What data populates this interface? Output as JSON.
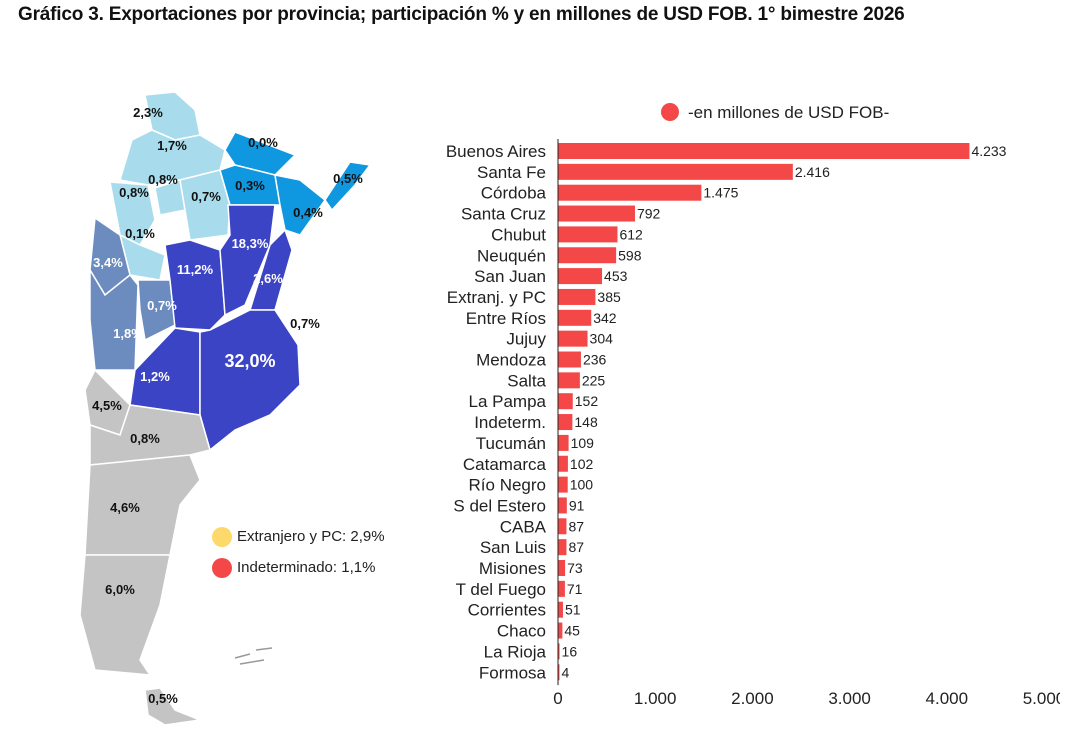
{
  "title": "Gráfico 3. Exportaciones por provincia; participación % y en millones de USD FOB. 1° bimestre 2026",
  "colors": {
    "bar": "#f44848",
    "extranjero": "#fcd96a",
    "indeterminado": "#f44848",
    "noa": "#a8dcec",
    "nea": "#0f97df",
    "cuyo": "#6c8cc0",
    "centro": "#3b44c4",
    "patagonia": "#c4c4c4"
  },
  "map": {
    "labels": [
      "2,3%",
      "1,7%",
      "0,0%",
      "0,8%",
      "0,8%",
      "0,7%",
      "0,3%",
      "0,5%",
      "0,4%",
      "0,1%",
      "18,3%",
      "3,4%",
      "11,2%",
      "2,6%",
      "0,7%",
      "0,7%",
      "1,8%",
      "32,0%",
      "1,2%",
      "4,5%",
      "0,8%",
      "4,6%",
      "6,0%",
      "0,5%"
    ],
    "legend": [
      {
        "label": "Extranjero y PC: 2,9%",
        "color": "#fcd96a"
      },
      {
        "label": "Indeterminado: 1,1%",
        "color": "#f44848"
      }
    ]
  },
  "chart_data": {
    "type": "bar",
    "orientation": "horizontal",
    "legend": "-en millones de USD FOB-",
    "categories": [
      "Buenos Aires",
      "Santa Fe",
      "Córdoba",
      "Santa Cruz",
      "Chubut",
      "Neuquén",
      "San Juan",
      "Extranj. y PC",
      "Entre Ríos",
      "Jujuy",
      "Mendoza",
      "Salta",
      "La Pampa",
      "Indeterm.",
      "Tucumán",
      "Catamarca",
      "Río Negro",
      "S del Estero",
      "CABA",
      "San Luis",
      "Misiones",
      "T del Fuego",
      "Corrientes",
      "Chaco",
      "La Rioja",
      "Formosa"
    ],
    "values": [
      4233,
      2416,
      1475,
      792,
      612,
      598,
      453,
      385,
      342,
      304,
      236,
      225,
      152,
      148,
      109,
      102,
      100,
      91,
      87,
      87,
      73,
      71,
      51,
      45,
      16,
      4
    ],
    "value_labels": [
      "4.233",
      "2.416",
      "1.475",
      "792",
      "612",
      "598",
      "453",
      "385",
      "342",
      "304",
      "236",
      "225",
      "152",
      "148",
      "109",
      "102",
      "100",
      "91",
      "87",
      "87",
      "73",
      "71",
      "51",
      "45",
      "16",
      "4"
    ],
    "xlim": [
      0,
      5000
    ],
    "xticks": [
      0,
      1000,
      2000,
      3000,
      4000,
      5000
    ],
    "xtick_labels": [
      "0",
      "1.000",
      "2.000",
      "3.000",
      "4.000",
      "5.000"
    ],
    "grid": false
  }
}
